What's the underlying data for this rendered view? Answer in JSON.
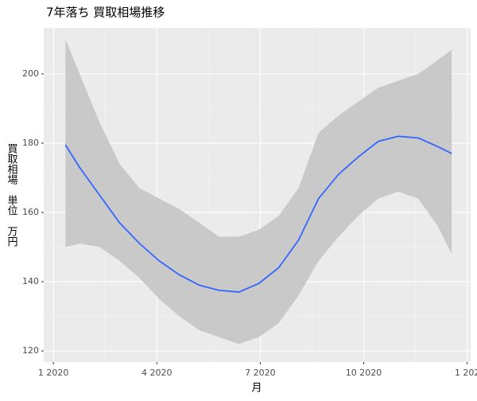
{
  "chart_data": {
    "type": "smooth",
    "title": "7年落ち 買取相場推移",
    "x_label": "月",
    "y_label": "買取相場　単位　万円",
    "x": [
      0.35,
      0.76,
      1.34,
      1.92,
      2.5,
      3.07,
      3.65,
      4.23,
      4.8,
      5.38,
      5.96,
      6.53,
      7.11,
      7.69,
      8.27,
      8.84,
      9.42,
      10.0,
      10.58,
      11.15,
      11.55
    ],
    "values": [
      179.5,
      173,
      165,
      157,
      151,
      146,
      142,
      139,
      137.5,
      137,
      139.5,
      144,
      152,
      164,
      171,
      176,
      180.5,
      182,
      181.5,
      179,
      177
    ],
    "lower": [
      150,
      151,
      150,
      146,
      141,
      135,
      130,
      126,
      124,
      122,
      124,
      128,
      136,
      146,
      153,
      159,
      164,
      166,
      164,
      156,
      148
    ],
    "upper": [
      210,
      200,
      186,
      174,
      167,
      164,
      161,
      157,
      153,
      153,
      155,
      159,
      167,
      183,
      188,
      192,
      196,
      198,
      200,
      204,
      207
    ],
    "color": "#3366ff",
    "band_color": "#c9c9c9",
    "xlim": [
      -0.28,
      12.1
    ],
    "xticks": [
      {
        "value": 0,
        "label": "1 2020"
      },
      {
        "value": 3,
        "label": "4 2020"
      },
      {
        "value": 6,
        "label": "7 2020"
      },
      {
        "value": 9,
        "label": "10 2020"
      },
      {
        "value": 12,
        "label": "1 202"
      }
    ],
    "ylim": [
      116.8,
      213.3
    ],
    "yticks": [
      120,
      140,
      160,
      180,
      200
    ],
    "grid": true
  }
}
